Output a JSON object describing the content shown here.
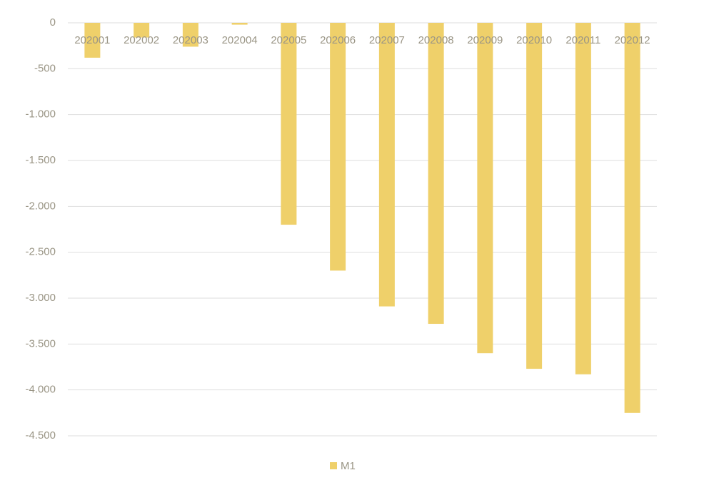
{
  "chart_data": {
    "type": "bar",
    "categories": [
      "202001",
      "202002",
      "202003",
      "202004",
      "202005",
      "202006",
      "202007",
      "202008",
      "202009",
      "202010",
      "202011",
      "202012"
    ],
    "series": [
      {
        "name": "M1",
        "color": "#efd06a",
        "values": [
          -380,
          -160,
          -260,
          -20,
          -2200,
          -2700,
          -3090,
          -3280,
          -3600,
          -3770,
          -3830,
          -4250
        ]
      }
    ],
    "ylim": [
      -4500,
      0
    ],
    "yticks": [
      0,
      -500,
      {
        "value": -1000,
        "label": "-1.000"
      },
      {
        "value": -1500,
        "label": "-1.500"
      },
      {
        "value": -2000,
        "label": "-2.000"
      },
      {
        "value": -2500,
        "label": "-2.500"
      },
      {
        "value": -3000,
        "label": "-3.000"
      },
      {
        "value": -3500,
        "label": "-3.500"
      },
      {
        "value": -4000,
        "label": "-4.000"
      },
      {
        "value": -4500,
        "label": "-4.500"
      }
    ],
    "grid": true,
    "legend": "bottom"
  }
}
